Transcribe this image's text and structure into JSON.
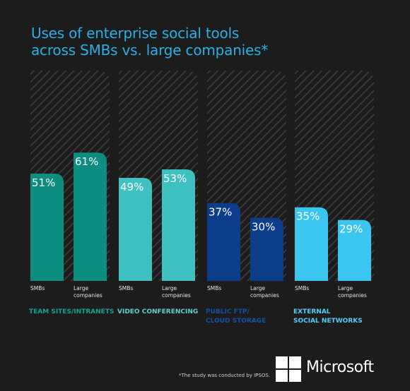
{
  "title": [
    "Uses of enterprise social tools",
    "across SMBs vs. large companies*"
  ],
  "footnote": "*The study was conducted by IPSOS.",
  "brand": "Microsoft",
  "colors": {
    "background": "#1c1c1c",
    "title": "#2ab0e6",
    "team_sites": "#0d8c80",
    "video_conferencing": "#40c1c1",
    "public_ftp": "#0b3d8a",
    "external_social": "#3bc6f2",
    "hatch": "#3e3e3e"
  },
  "chart_data": {
    "type": "bar",
    "title": "Uses of enterprise social tools across SMBs vs. large companies*",
    "ylim": [
      0,
      100
    ],
    "unit": "%",
    "groups": [
      {
        "name": "TEAM SITES/INTRANETS",
        "color": "#0d8c80",
        "label_color": "#0fa392",
        "bars": [
          {
            "label": "SMBs",
            "value": 51
          },
          {
            "label": "Large\ncompanies",
            "value": 61
          }
        ]
      },
      {
        "name": "VIDEO CONFERENCING",
        "color": "#40c1c1",
        "label_color": "#5fd0cf",
        "bars": [
          {
            "label": "SMBs",
            "value": 49
          },
          {
            "label": "Large\ncompanies",
            "value": 53
          }
        ]
      },
      {
        "name": "PUBLIC FTP/\nCLOUD STORAGE",
        "color": "#0b3d8a",
        "label_color": "#1450a8",
        "bars": [
          {
            "label": "SMBs",
            "value": 37
          },
          {
            "label": "Large\ncompanies",
            "value": 30
          }
        ]
      },
      {
        "name": "EXTERNAL\nSOCIAL NETWORKS",
        "color": "#3bc6f2",
        "label_color": "#4fd0f7",
        "bars": [
          {
            "label": "SMBs",
            "value": 35
          },
          {
            "label": "Large\ncompanies",
            "value": 29
          }
        ]
      }
    ]
  }
}
